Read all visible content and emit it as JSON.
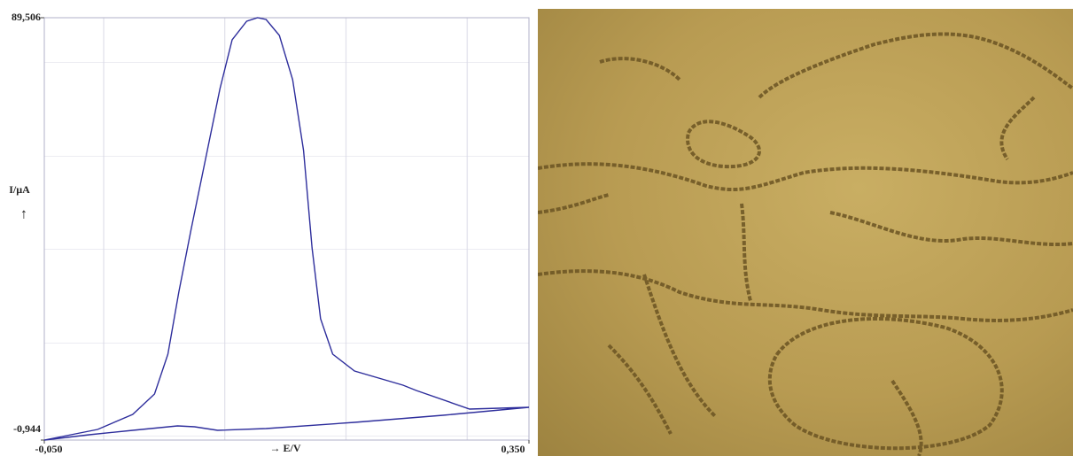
{
  "chart_data": {
    "type": "line",
    "y_label": "I/µA",
    "y_arrow": "↑",
    "x_label": "→  E/V",
    "x": [
      -0.05,
      -0.013,
      0.023,
      0.06,
      0.074,
      0.093,
      0.133,
      0.206,
      0.279,
      0.35,
      0.301,
      0.257,
      0.246,
      0.206,
      0.188,
      0.178,
      0.171,
      0.164,
      0.155,
      0.144,
      0.133,
      0.126,
      0.117,
      0.105,
      0.095,
      0.083,
      0.071,
      0.061,
      0.052,
      0.041,
      0.023,
      -0.006,
      -0.05
    ],
    "series": [
      {
        "color": "#2e2e9c",
        "values": [
          -0.944,
          0.19,
          1.14,
          2.09,
          1.9,
          1.14,
          1.52,
          2.85,
          4.37,
          6.07,
          5.69,
          9.67,
          10.81,
          13.85,
          17.45,
          25.03,
          40.2,
          61.06,
          76.23,
          85.71,
          89.12,
          89.506,
          88.74,
          84.76,
          74.33,
          59.16,
          43.99,
          30.72,
          17.45,
          8.92,
          4.55,
          1.33,
          -0.944
        ]
      }
    ],
    "xlim": [
      -0.05,
      0.35
    ],
    "ylim": [
      -0.944,
      89.506
    ],
    "xticks": [
      {
        "value": -0.05,
        "label": "-0,050"
      },
      {
        "value": 0.35,
        "label": "0,350"
      }
    ],
    "yticks": [
      {
        "value": -0.944,
        "label": "-0,944"
      },
      {
        "value": 89.506,
        "label": "89,506"
      }
    ],
    "grid": true
  }
}
